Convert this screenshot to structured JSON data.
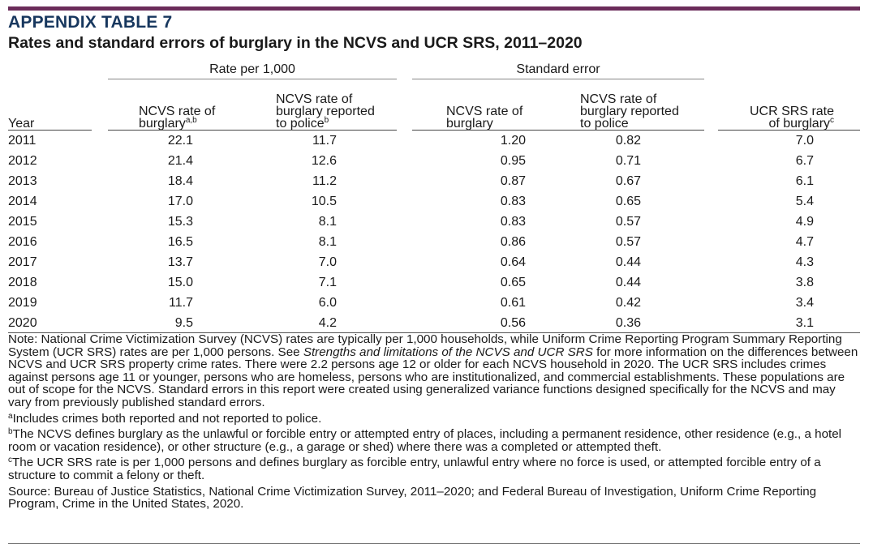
{
  "kicker": "APPENDIX TABLE 7",
  "title": "Rates and standard errors of burglary in the NCVS and UCR SRS, 2011–2020",
  "groups": {
    "rate": "Rate per 1,000",
    "se": "Standard error"
  },
  "columns": {
    "year": "Year",
    "ncvs_rate": "NCVS rate of\nburglary",
    "ncvs_rate_sup": "a,b",
    "ncvs_police": "NCVS rate of\nburglary reported\nto police",
    "ncvs_police_sup": "b",
    "se_rate": "NCVS rate of\nburglary",
    "se_police": "NCVS rate of\nburglary reported\nto police",
    "ucr": "UCR SRS rate\nof burglary",
    "ucr_sup": "c"
  },
  "rows": [
    [
      "2011",
      "22.1",
      "11.7",
      "1.20",
      "0.82",
      "7.0"
    ],
    [
      "2012",
      "21.4",
      "12.6",
      "0.95",
      "0.71",
      "6.7"
    ],
    [
      "2013",
      "18.4",
      "11.2",
      "0.87",
      "0.67",
      "6.1"
    ],
    [
      "2014",
      "17.0",
      "10.5",
      "0.83",
      "0.65",
      "5.4"
    ],
    [
      "2015",
      "15.3",
      "8.1",
      "0.83",
      "0.57",
      "4.9"
    ],
    [
      "2016",
      "16.5",
      "8.1",
      "0.86",
      "0.57",
      "4.7"
    ],
    [
      "2017",
      "13.7",
      "7.0",
      "0.64",
      "0.44",
      "4.3"
    ],
    [
      "2018",
      "15.0",
      "7.1",
      "0.65",
      "0.44",
      "3.8"
    ],
    [
      "2019",
      "11.7",
      "6.0",
      "0.61",
      "0.42",
      "3.4"
    ],
    [
      "2020",
      "9.5",
      "4.2",
      "0.56",
      "0.36",
      "3.1"
    ]
  ],
  "note": {
    "text_before": "Note: National Crime Victimization Survey (NCVS) rates are typically per 1,000 households, while Uniform Crime Reporting Program Summary Reporting System (UCR SRS) rates are per 1,000 persons. See ",
    "italic": "Strengths and limitations of the NCVS and UCR SRS",
    "text_after": " for more information on the differences between NCVS and UCR SRS property crime rates. There were 2.2 persons age 12 or older for each NCVS household in 2020. The UCR SRS includes crimes against persons age 11 or younger, persons who are homeless, persons who are institutionalized, and commercial establishments. These populations are out of scope for the NCVS. Standard errors in this report were created using generalized variance functions designed specifically for the NCVS and may vary from previously published standard errors."
  },
  "footnotes": [
    {
      "mark": "a",
      "text": "Includes crimes both reported and not reported to police."
    },
    {
      "mark": "b",
      "text": "The NCVS defines burglary as the unlawful or forcible entry or attempted entry of places, including a permanent residence, other residence (e.g., a hotel room or vacation residence), or other structure (e.g., a garage or shed) where there was a completed or attempted theft."
    },
    {
      "mark": "c",
      "text": "The UCR SRS rate is per 1,000 persons and defines burglary as forcible entry, unlawful entry where no force is used, or attempted forcible entry of a structure to commit a felony or theft."
    }
  ],
  "source": "Source: Bureau of Justice Statistics, National Crime Victimization Survey, 2011–2020; and Federal Bureau of Investigation, Uniform Crime Reporting Program, Crime in the United States, 2020.",
  "colors": {
    "accent_bar": "#6b2c5a",
    "kicker": "#17375e"
  }
}
